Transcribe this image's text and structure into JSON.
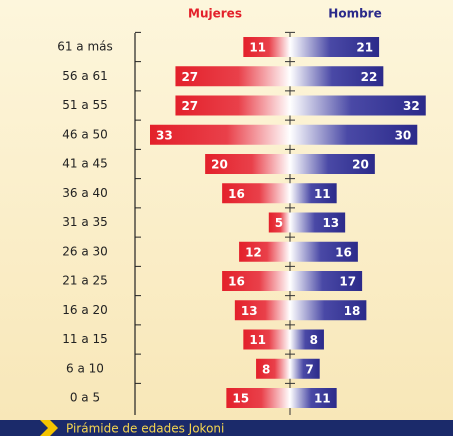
{
  "chart_data": {
    "type": "pyramid",
    "categories": [
      "61 a más",
      "56 a 61",
      "51 a 55",
      "46 a 50",
      "41 a 45",
      "36 a 40",
      "31 a 35",
      "26 a 30",
      "21 a 25",
      "16 a 20",
      "11 a 15",
      "6 a 10",
      "0 a 5"
    ],
    "series": [
      {
        "name": "Mujeres",
        "color": "#e3202a",
        "values": [
          11,
          27,
          27,
          33,
          20,
          16,
          5,
          12,
          16,
          13,
          11,
          8,
          15
        ]
      },
      {
        "name": "Hombre",
        "color": "#2b2a8a",
        "values": [
          21,
          22,
          32,
          30,
          20,
          11,
          13,
          16,
          17,
          18,
          8,
          7,
          11
        ]
      }
    ],
    "footer": "Pirámide de edades Jokoni"
  }
}
